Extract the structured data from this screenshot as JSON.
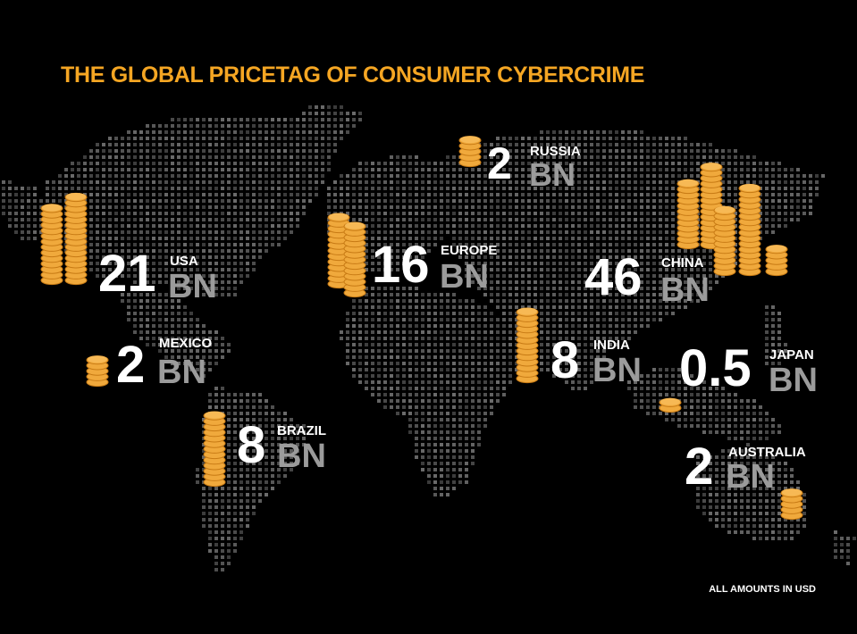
{
  "title": "THE GLOBAL PRICETAG OF CONSUMER CYBERCRIME",
  "footnote": "ALL AMOUNTS IN USD",
  "colors": {
    "accent": "#F5A623",
    "coin": "#F0A93C",
    "coin_edge": "#C77A14",
    "unit": "#9B9B9B",
    "map_dot": "#4A4A4A",
    "background": "#000000"
  },
  "chart_data": {
    "type": "map-bubble",
    "title": "THE GLOBAL PRICETAG OF CONSUMER CYBERCRIME",
    "unit": "BN",
    "currency_note": "ALL AMOUNTS IN USD",
    "regions": [
      {
        "name": "USA",
        "value": 21,
        "value_label": "21",
        "unit": "BN",
        "icon": "coin-stacks-icon"
      },
      {
        "name": "MEXICO",
        "value": 2,
        "value_label": "2",
        "unit": "BN",
        "icon": "coin-stack-icon"
      },
      {
        "name": "BRAZIL",
        "value": 8,
        "value_label": "8",
        "unit": "BN",
        "icon": "coin-stack-icon"
      },
      {
        "name": "EUROPE",
        "value": 16,
        "value_label": "16",
        "unit": "BN",
        "icon": "coin-stacks-icon"
      },
      {
        "name": "RUSSIA",
        "value": 2,
        "value_label": "2",
        "unit": "BN",
        "icon": "coin-stack-icon"
      },
      {
        "name": "INDIA",
        "value": 8,
        "value_label": "8",
        "unit": "BN",
        "icon": "coin-stack-icon"
      },
      {
        "name": "CHINA",
        "value": 46,
        "value_label": "46",
        "unit": "BN",
        "icon": "coin-stacks-icon"
      },
      {
        "name": "JAPAN",
        "value": 0.5,
        "value_label": "0.5",
        "unit": "BN",
        "icon": "coin-icon"
      },
      {
        "name": "AUSTRALIA",
        "value": 2,
        "value_label": "2",
        "unit": "BN",
        "icon": "coin-stack-icon"
      }
    ]
  }
}
